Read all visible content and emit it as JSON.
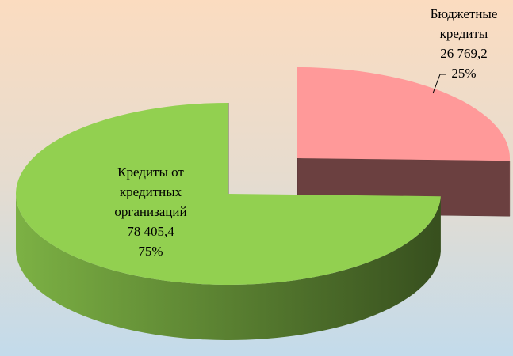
{
  "chart_data": {
    "type": "pie",
    "categories": [
      "Бюджетные кредиты",
      "Кредиты от кредитных организаций"
    ],
    "values": [
      26769.2,
      78405.4
    ],
    "value_labels": [
      "26 769,2",
      "78 405,4"
    ],
    "percents": [
      25,
      75
    ],
    "percent_labels": [
      "25%",
      "75%"
    ],
    "colors": [
      "#ff9999",
      "#92d050"
    ]
  }
}
